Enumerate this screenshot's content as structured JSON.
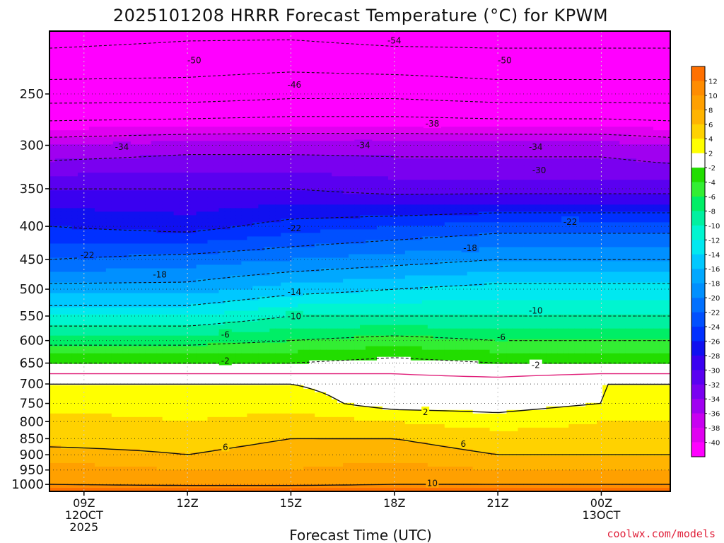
{
  "chart_data": {
    "type": "heatmap",
    "title": "2025101208 HRRR Forecast Temperature (°C) for KPWM",
    "xlabel": "Forecast Time (UTC)",
    "ylabel": "",
    "credit": "coolwx.com/models",
    "x_ticks": [
      {
        "hour": 9,
        "lines": [
          "09Z",
          "12OCT",
          "2025"
        ]
      },
      {
        "hour": 12,
        "lines": [
          "12Z"
        ]
      },
      {
        "hour": 15,
        "lines": [
          "15Z"
        ]
      },
      {
        "hour": 18,
        "lines": [
          "18Z"
        ]
      },
      {
        "hour": 21,
        "lines": [
          "21Z"
        ]
      },
      {
        "hour": 24,
        "lines": [
          "00Z",
          "13OCT"
        ]
      }
    ],
    "xlim_hours": [
      8,
      26
    ],
    "y_ticks": [
      250,
      300,
      350,
      400,
      450,
      500,
      550,
      600,
      650,
      700,
      750,
      800,
      850,
      900,
      950,
      1000
    ],
    "ylim_hpa": [
      200,
      1025
    ],
    "y_scale": "log-pressure",
    "grid": "dotted",
    "colorbar": {
      "labels": [
        12,
        10,
        8,
        6,
        4,
        2,
        -2,
        -4,
        -6,
        -8,
        -10,
        -12,
        -14,
        -16,
        -18,
        -20,
        -22,
        -24,
        -26,
        -28,
        -30,
        -32,
        -34,
        -36,
        -38,
        -40
      ],
      "bins": [
        {
          "lo": 12,
          "hi": 14,
          "color": "#ff7000"
        },
        {
          "lo": 10,
          "hi": 12,
          "color": "#ff8c00"
        },
        {
          "lo": 8,
          "hi": 10,
          "color": "#ffa000"
        },
        {
          "lo": 6,
          "hi": 8,
          "color": "#ffb400"
        },
        {
          "lo": 4,
          "hi": 6,
          "color": "#ffd200"
        },
        {
          "lo": 2,
          "hi": 4,
          "color": "#ffff00"
        },
        {
          "lo": -2,
          "hi": 2,
          "color": "#ffffff"
        },
        {
          "lo": -4,
          "hi": -2,
          "color": "#22dd00"
        },
        {
          "lo": -6,
          "hi": -4,
          "color": "#33ee33"
        },
        {
          "lo": -8,
          "hi": -6,
          "color": "#00ee66"
        },
        {
          "lo": -10,
          "hi": -8,
          "color": "#00f0a0"
        },
        {
          "lo": -12,
          "hi": -10,
          "color": "#00f5d0"
        },
        {
          "lo": -14,
          "hi": -12,
          "color": "#00e8f0"
        },
        {
          "lo": -16,
          "hi": -14,
          "color": "#00c8ff"
        },
        {
          "lo": -18,
          "hi": -16,
          "color": "#00a8ff"
        },
        {
          "lo": -20,
          "hi": -18,
          "color": "#0090ff"
        },
        {
          "lo": -22,
          "hi": -20,
          "color": "#0070ff"
        },
        {
          "lo": -24,
          "hi": -22,
          "color": "#0050ff"
        },
        {
          "lo": -26,
          "hi": -24,
          "color": "#0030ff"
        },
        {
          "lo": -28,
          "hi": -26,
          "color": "#1010f0"
        },
        {
          "lo": -30,
          "hi": -28,
          "color": "#3a00f0"
        },
        {
          "lo": -32,
          "hi": -30,
          "color": "#5a00f0"
        },
        {
          "lo": -34,
          "hi": -32,
          "color": "#7a00f0"
        },
        {
          "lo": -36,
          "hi": -34,
          "color": "#a000f0"
        },
        {
          "lo": -38,
          "hi": -36,
          "color": "#c800f0"
        },
        {
          "lo": -40,
          "hi": -38,
          "color": "#e000f0"
        },
        {
          "lo": -60,
          "hi": -40,
          "color": "#ff00ff"
        }
      ]
    },
    "temperature_profiles": [
      {
        "hour": 8,
        "points": [
          [
            200,
            -56
          ],
          [
            250,
            -48
          ],
          [
            300,
            -36
          ],
          [
            350,
            -30
          ],
          [
            400,
            -26
          ],
          [
            450,
            -22
          ],
          [
            500,
            -17
          ],
          [
            550,
            -12
          ],
          [
            600,
            -7
          ],
          [
            650,
            -2
          ],
          [
            700,
            2
          ],
          [
            750,
            3
          ],
          [
            800,
            5
          ],
          [
            850,
            5
          ],
          [
            900,
            7
          ],
          [
            950,
            9
          ],
          [
            1000,
            10
          ],
          [
            1015,
            13
          ]
        ]
      },
      {
        "hour": 12,
        "points": [
          [
            200,
            -55
          ],
          [
            250,
            -48
          ],
          [
            300,
            -35
          ],
          [
            350,
            -30
          ],
          [
            400,
            -27
          ],
          [
            450,
            -21
          ],
          [
            500,
            -17
          ],
          [
            550,
            -12
          ],
          [
            600,
            -7
          ],
          [
            650,
            -2
          ],
          [
            700,
            2
          ],
          [
            750,
            3
          ],
          [
            800,
            4
          ],
          [
            850,
            5
          ],
          [
            900,
            6
          ],
          [
            950,
            8
          ],
          [
            1000,
            9
          ],
          [
            1015,
            13
          ]
        ]
      },
      {
        "hour": 15,
        "points": [
          [
            200,
            -55
          ],
          [
            250,
            -47
          ],
          [
            300,
            -35
          ],
          [
            350,
            -30
          ],
          [
            400,
            -25
          ],
          [
            450,
            -20
          ],
          [
            500,
            -15
          ],
          [
            550,
            -10
          ],
          [
            600,
            -6
          ],
          [
            650,
            -2
          ],
          [
            700,
            2
          ],
          [
            750,
            3
          ],
          [
            800,
            5
          ],
          [
            850,
            6
          ],
          [
            900,
            7
          ],
          [
            950,
            8
          ],
          [
            1000,
            9
          ],
          [
            1015,
            13
          ]
        ]
      },
      {
        "hour": 18,
        "points": [
          [
            200,
            -56
          ],
          [
            250,
            -47
          ],
          [
            300,
            -35
          ],
          [
            350,
            -31
          ],
          [
            400,
            -24
          ],
          [
            450,
            -19
          ],
          [
            500,
            -14
          ],
          [
            550,
            -10
          ],
          [
            600,
            -5
          ],
          [
            650,
            -1
          ],
          [
            700,
            1
          ],
          [
            750,
            1
          ],
          [
            800,
            4
          ],
          [
            850,
            6
          ],
          [
            900,
            7
          ],
          [
            950,
            9
          ],
          [
            1000,
            10
          ],
          [
            1015,
            13
          ]
        ]
      },
      {
        "hour": 21,
        "points": [
          [
            200,
            -56
          ],
          [
            250,
            -48
          ],
          [
            300,
            -35
          ],
          [
            350,
            -31
          ],
          [
            400,
            -23
          ],
          [
            450,
            -18
          ],
          [
            500,
            -13
          ],
          [
            550,
            -10
          ],
          [
            600,
            -6
          ],
          [
            650,
            -2
          ],
          [
            700,
            1
          ],
          [
            750,
            1
          ],
          [
            800,
            3
          ],
          [
            850,
            5
          ],
          [
            900,
            6
          ],
          [
            950,
            8
          ],
          [
            1000,
            10
          ],
          [
            1015,
            13
          ]
        ]
      },
      {
        "hour": 24,
        "points": [
          [
            200,
            -56
          ],
          [
            250,
            -48
          ],
          [
            300,
            -35
          ],
          [
            350,
            -31
          ],
          [
            400,
            -23
          ],
          [
            450,
            -18
          ],
          [
            500,
            -13
          ],
          [
            550,
            -10
          ],
          [
            600,
            -6
          ],
          [
            650,
            -2
          ],
          [
            700,
            2
          ],
          [
            750,
            2
          ],
          [
            800,
            4
          ],
          [
            850,
            5
          ],
          [
            900,
            6
          ],
          [
            950,
            8
          ],
          [
            1000,
            10
          ],
          [
            1015,
            13
          ]
        ]
      },
      {
        "hour": 26,
        "points": [
          [
            200,
            -56
          ],
          [
            250,
            -48
          ],
          [
            300,
            -36
          ],
          [
            350,
            -31
          ],
          [
            400,
            -23
          ],
          [
            450,
            -18
          ],
          [
            500,
            -13
          ],
          [
            550,
            -10
          ],
          [
            600,
            -6
          ],
          [
            650,
            -2
          ],
          [
            700,
            2
          ],
          [
            750,
            2
          ],
          [
            800,
            4
          ],
          [
            850,
            5
          ],
          [
            900,
            6
          ],
          [
            950,
            8
          ],
          [
            1000,
            10
          ],
          [
            1015,
            13
          ]
        ]
      }
    ],
    "contour_labels": [
      {
        "text": "-54",
        "hour": 18,
        "hpa": 207
      },
      {
        "text": "-50",
        "hour": 12.2,
        "hpa": 222
      },
      {
        "text": "-50",
        "hour": 21.2,
        "hpa": 222
      },
      {
        "text": "-46",
        "hour": 15.1,
        "hpa": 242
      },
      {
        "text": "-38",
        "hour": 19.1,
        "hpa": 278
      },
      {
        "text": "-34",
        "hour": 10.1,
        "hpa": 302
      },
      {
        "text": "-34",
        "hour": 17.1,
        "hpa": 300
      },
      {
        "text": "-34",
        "hour": 22.1,
        "hpa": 302
      },
      {
        "text": "-30",
        "hour": 22.2,
        "hpa": 328
      },
      {
        "text": "-22",
        "hour": 15.1,
        "hpa": 403
      },
      {
        "text": "-22",
        "hour": 23.1,
        "hpa": 394
      },
      {
        "text": "-22",
        "hour": 9.1,
        "hpa": 443
      },
      {
        "text": "-18",
        "hour": 20.2,
        "hpa": 432
      },
      {
        "text": "-18",
        "hour": 11.2,
        "hpa": 475
      },
      {
        "text": "-14",
        "hour": 15.1,
        "hpa": 505
      },
      {
        "text": "-10",
        "hour": 15.1,
        "hpa": 551
      },
      {
        "text": "-10",
        "hour": 22.1,
        "hpa": 540
      },
      {
        "text": "-6",
        "hour": 13.1,
        "hpa": 588
      },
      {
        "text": "-6",
        "hour": 21.1,
        "hpa": 593
      },
      {
        "text": "-2",
        "hour": 13.1,
        "hpa": 645
      },
      {
        "text": "-2",
        "hour": 22.1,
        "hpa": 655
      },
      {
        "text": "2",
        "hour": 18.9,
        "hpa": 774
      },
      {
        "text": "6",
        "hour": 13.1,
        "hpa": 876
      },
      {
        "text": "6",
        "hour": 20.0,
        "hpa": 866
      },
      {
        "text": "10",
        "hour": 19.1,
        "hpa": 996
      }
    ]
  }
}
